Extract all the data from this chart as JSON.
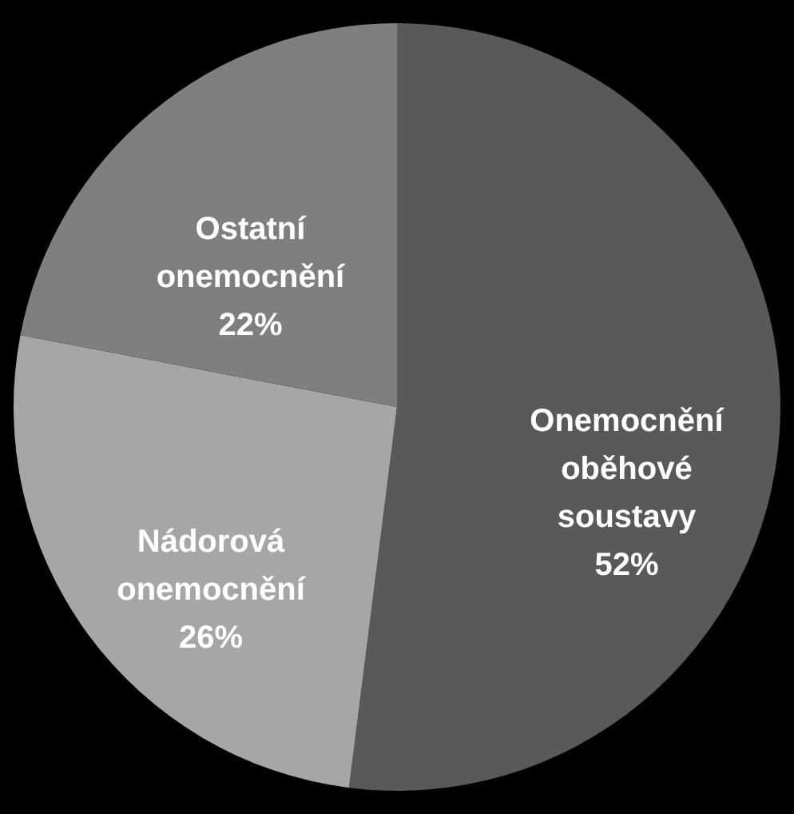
{
  "chart_data": {
    "type": "pie",
    "categories": [
      "Onemocnění oběhové soustavy",
      "Nádorová onemocnění",
      "Ostatní onemocnění"
    ],
    "values": [
      52,
      26,
      22
    ],
    "colors": [
      "#595959",
      "#a6a6a6",
      "#7f7f7f"
    ],
    "value_labels": [
      "52%",
      "26%",
      "22%"
    ],
    "legend": false
  }
}
